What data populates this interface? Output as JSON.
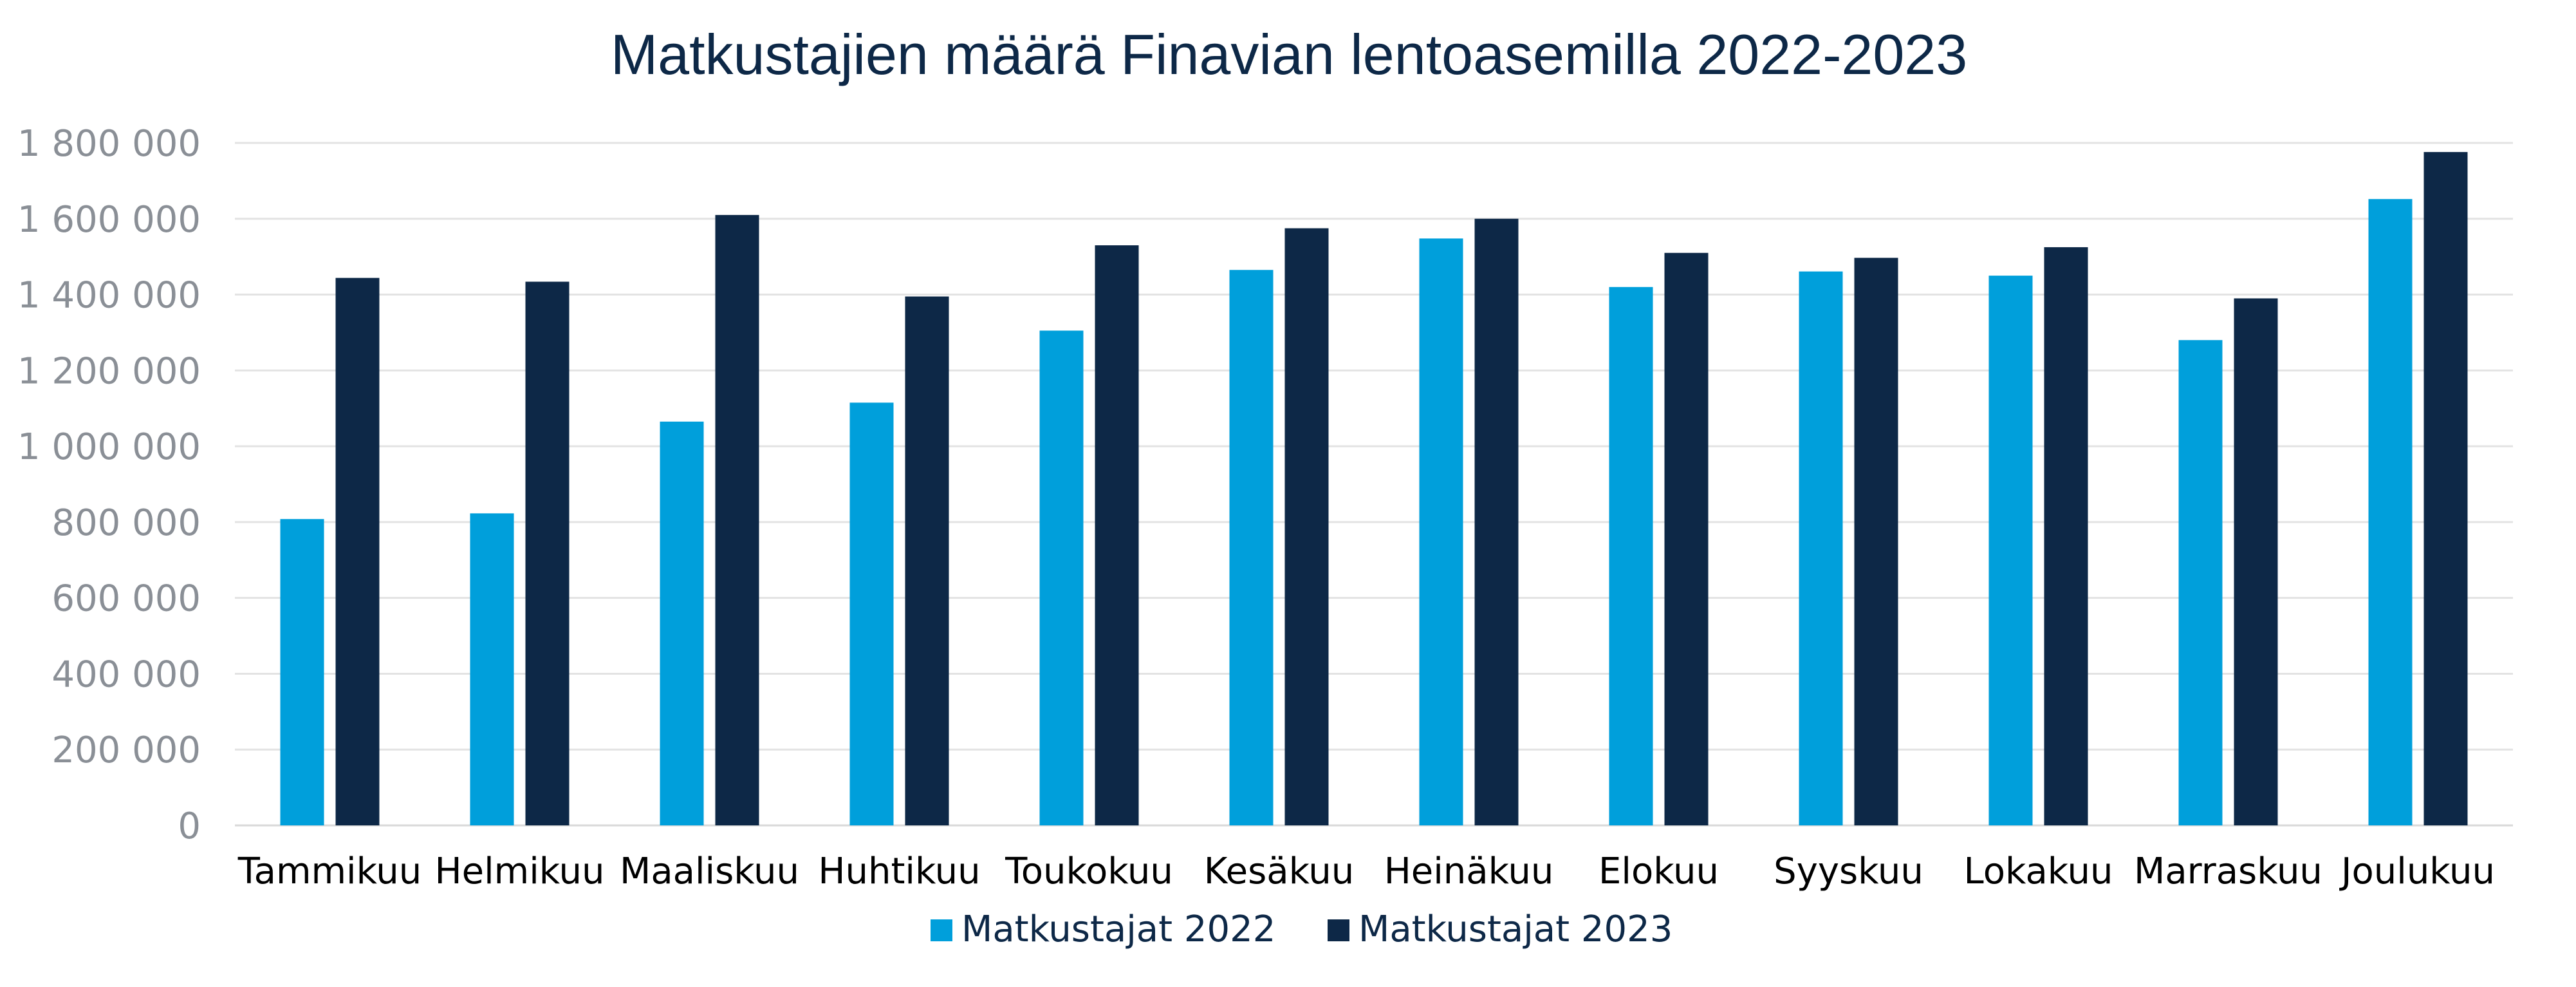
{
  "chart_data": {
    "type": "bar",
    "title": "Matkustajien määrä Finavian lentoasemilla 2022-2023",
    "xlabel": "",
    "ylabel": "",
    "ylim": [
      0,
      1800000
    ],
    "yticks": [
      0,
      200000,
      400000,
      600000,
      800000,
      1000000,
      1200000,
      1400000,
      1600000,
      1800000
    ],
    "ytick_labels": [
      "0",
      "200 000",
      "400 000",
      "600 000",
      "800 000",
      "1 000 000",
      "1 200 000",
      "1 400 000",
      "1 600 000",
      "1 800 000"
    ],
    "categories": [
      "Tammikuu",
      "Helmikuu",
      "Maaliskuu",
      "Huhtikuu",
      "Toukokuu",
      "Kesäkuu",
      "Heinäkuu",
      "Elokuu",
      "Syyskuu",
      "Lokakuu",
      "Marraskuu",
      "Joulukuu"
    ],
    "series": [
      {
        "name": "Matkustajat 2022",
        "color": "#009fdb",
        "values": [
          808000,
          823000,
          1065000,
          1115000,
          1305000,
          1465000,
          1548000,
          1420000,
          1461000,
          1450000,
          1280000,
          1652000
        ]
      },
      {
        "name": "Matkustajat 2023",
        "color": "#0d2847",
        "values": [
          1444000,
          1434000,
          1610000,
          1395000,
          1530000,
          1575000,
          1600000,
          1510000,
          1497000,
          1525000,
          1390000,
          1776000
        ]
      }
    ],
    "grid": true,
    "legend_position": "bottom"
  }
}
